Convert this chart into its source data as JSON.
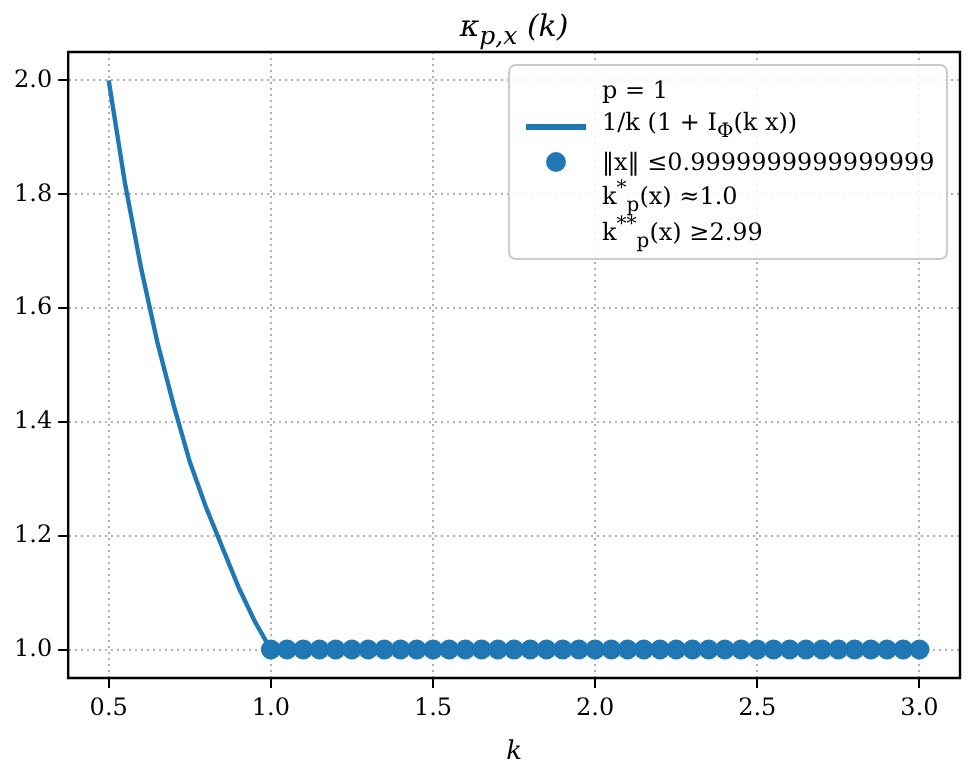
{
  "chart_data": {
    "type": "line",
    "title": "κ$_{p,x}$ (k)",
    "xlabel": "k",
    "legend_title": "p = 1",
    "xlim": [
      0.375,
      3.125
    ],
    "ylim": [
      0.95,
      2.05
    ],
    "xticks": [
      {
        "value": 0.5,
        "label": "0.5"
      },
      {
        "value": 1,
        "label": "1.0"
      },
      {
        "value": 1.5,
        "label": "1.5"
      },
      {
        "value": 2,
        "label": "2.0"
      },
      {
        "value": 2.5,
        "label": "2.5"
      },
      {
        "value": 3,
        "label": "3.0"
      }
    ],
    "yticks": [
      {
        "value": 1,
        "label": "1.0"
      },
      {
        "value": 1.2,
        "label": "1.2"
      },
      {
        "value": 1.4,
        "label": "1.4"
      },
      {
        "value": 1.6,
        "label": "1.6"
      },
      {
        "value": 1.8,
        "label": "1.8"
      },
      {
        "value": 2,
        "label": "2.0"
      }
    ],
    "grid": true,
    "legend": "top right",
    "line_style": "solid",
    "series": [
      {
        "name": "1/k (1 + I$_{Φ}$(k x))",
        "color": "#1f77b4",
        "marker": "none",
        "x": [
          0.5,
          0.55,
          0.6,
          0.65,
          0.7,
          0.75,
          0.8,
          0.85,
          0.9,
          0.95,
          1.0,
          1.5,
          2.0,
          2.5,
          3.0
        ],
        "values": [
          2.0,
          1.82,
          1.67,
          1.54,
          1.43,
          1.33,
          1.25,
          1.18,
          1.11,
          1.05,
          1.0,
          1.0,
          1.0,
          1.0,
          1.0
        ]
      },
      {
        "name": "‖x‖ ≤0.9999999999999999",
        "type": "scatter",
        "color": "#1f77b4",
        "marker": "circle",
        "x": [
          1.0,
          1.05,
          1.1,
          1.15,
          1.2,
          1.25,
          1.3,
          1.35,
          1.4,
          1.45,
          1.5,
          1.55,
          1.6,
          1.65,
          1.7,
          1.75,
          1.8,
          1.85,
          1.9,
          1.95,
          2.0,
          2.05,
          2.1,
          2.15,
          2.2,
          2.25,
          2.3,
          2.35,
          2.4,
          2.45,
          2.5,
          2.55,
          2.6,
          2.65,
          2.7,
          2.75,
          2.8,
          2.85,
          2.9,
          2.95,
          3.0
        ],
        "values": [
          1,
          1,
          1,
          1,
          1,
          1,
          1,
          1,
          1,
          1,
          1,
          1,
          1,
          1,
          1,
          1,
          1,
          1,
          1,
          1,
          1,
          1,
          1,
          1,
          1,
          1,
          1,
          1,
          1,
          1,
          1,
          1,
          1,
          1,
          1,
          1,
          1,
          1,
          1,
          1,
          1
        ]
      }
    ],
    "annotations": [
      "k$^{*}$$_{p}$(x) ≈1.0",
      "k$^{**}$$_{p}$(x) ≥2.99"
    ]
  }
}
